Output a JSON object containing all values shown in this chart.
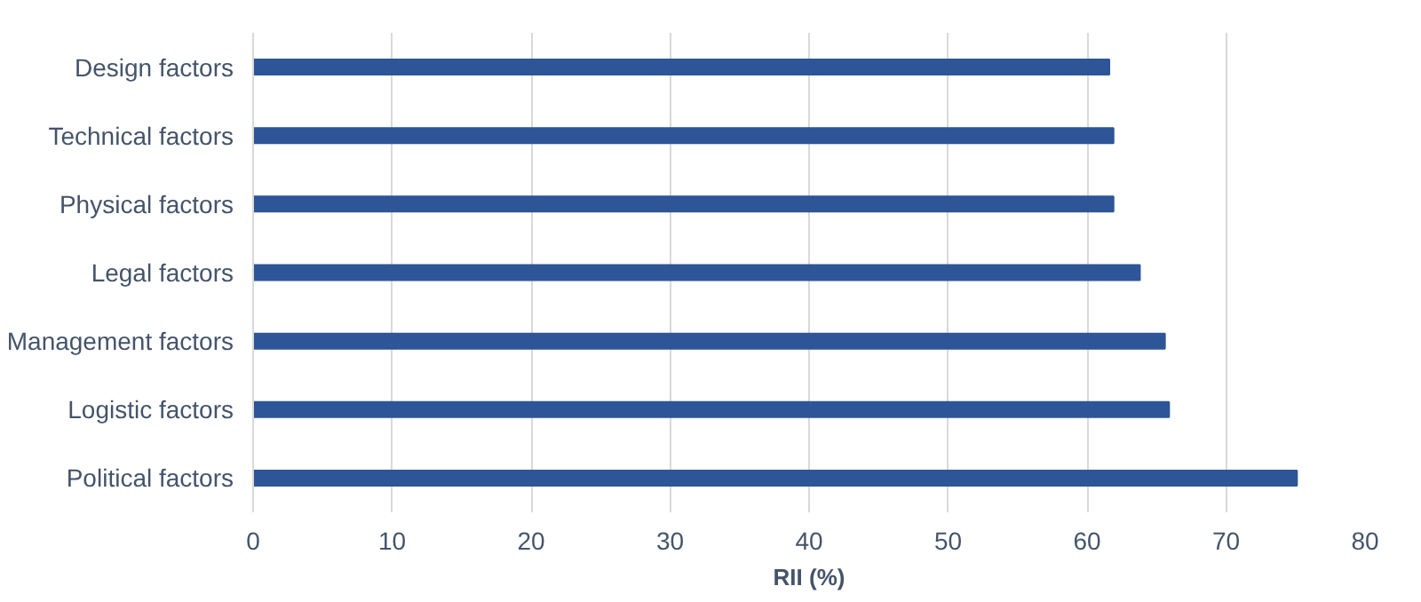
{
  "chart_data": {
    "type": "bar",
    "orientation": "horizontal",
    "xlabel": "RII (%)",
    "categories": [
      "Design factors",
      "Technical factors",
      "Physical factors",
      "Legal factors",
      "Management factors",
      "Logistic factors",
      "Political factors"
    ],
    "values": [
      61.6,
      61.9,
      61.9,
      63.8,
      65.6,
      65.9,
      75.1
    ],
    "color": "#2e5597",
    "xlim": [
      0,
      80
    ],
    "xticks": [
      0,
      10,
      20,
      30,
      40,
      50,
      60,
      70,
      80
    ],
    "grid": "x"
  }
}
